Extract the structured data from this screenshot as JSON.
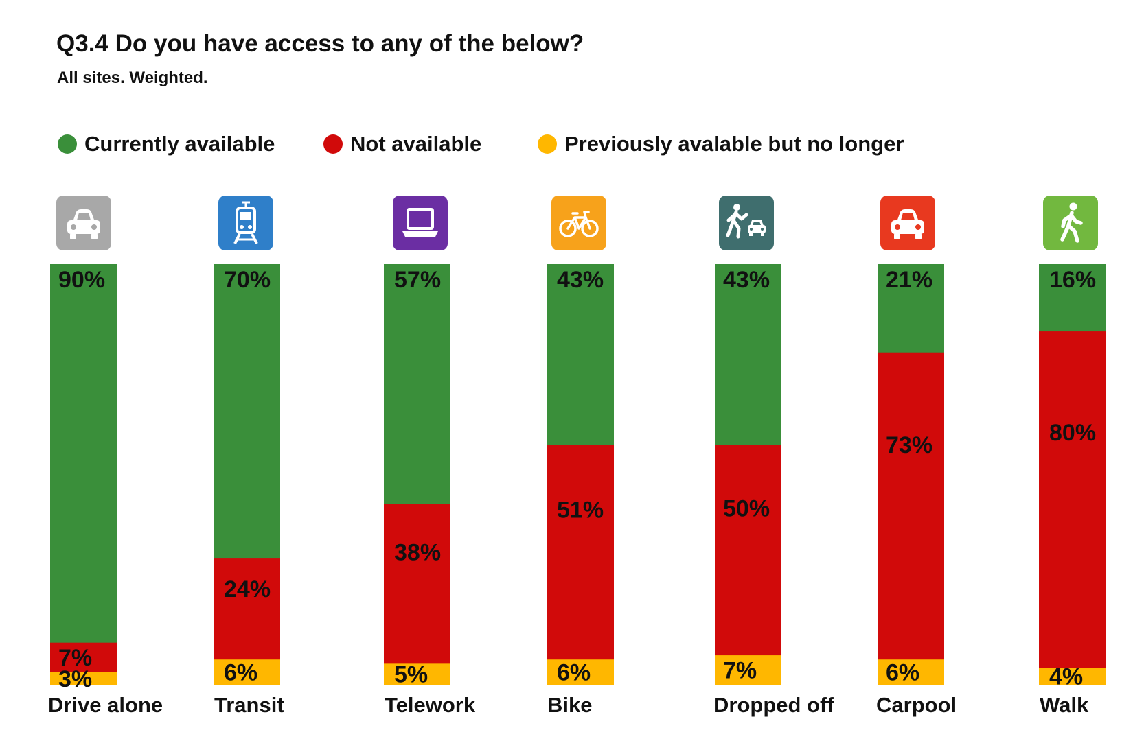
{
  "header": {
    "title": "Q3.4 Do you have access to any of the below?",
    "subtitle": "All sites. Weighted."
  },
  "legend": [
    {
      "label": "Currently available",
      "color": "#3a8f3a"
    },
    {
      "label": "Not available",
      "color": "#d10a0a"
    },
    {
      "label": "Previously avalable but no longer",
      "color": "#ffb700"
    }
  ],
  "icons": [
    {
      "name": "car-icon",
      "color": "#a8a8a8"
    },
    {
      "name": "tram-icon",
      "color": "#2f7fc9"
    },
    {
      "name": "laptop-icon",
      "color": "#6b2ea3"
    },
    {
      "name": "bike-icon",
      "color": "#f7a21b"
    },
    {
      "name": "dropped-off-icon",
      "color": "#3f6e6e"
    },
    {
      "name": "carpool-icon",
      "color": "#e8391f"
    },
    {
      "name": "walk-icon",
      "color": "#72b83f"
    }
  ],
  "chart_data": {
    "type": "bar",
    "stacked": true,
    "orientation": "vertical",
    "title": "Q3.4 Do you have access to any of the below?",
    "subtitle": "All sites. Weighted.",
    "categories": [
      "Drive alone",
      "Transit",
      "Telework",
      "Bike",
      "Dropped off",
      "Carpool",
      "Walk"
    ],
    "series": [
      {
        "name": "Currently available",
        "color": "#3a8f3a",
        "values": [
          90,
          70,
          57,
          43,
          43,
          21,
          16
        ]
      },
      {
        "name": "Not available",
        "color": "#d10a0a",
        "values": [
          7,
          24,
          38,
          51,
          50,
          73,
          80
        ]
      },
      {
        "name": "Previously avalable but no longer",
        "color": "#ffb700",
        "values": [
          3,
          6,
          5,
          6,
          7,
          6,
          4
        ]
      }
    ],
    "data_labels": [
      [
        "90%",
        "70%",
        "57%",
        "43%",
        "43%",
        "21%",
        "16%"
      ],
      [
        "7%",
        "24%",
        "38%",
        "51%",
        "50%",
        "73%",
        "80%"
      ],
      [
        "3%",
        "6%",
        "5%",
        "6%",
        "7%",
        "6%",
        "4%"
      ]
    ],
    "ylim": [
      0,
      100
    ],
    "xlabel": "",
    "ylabel": "",
    "grid": false,
    "legend_position": "top"
  }
}
